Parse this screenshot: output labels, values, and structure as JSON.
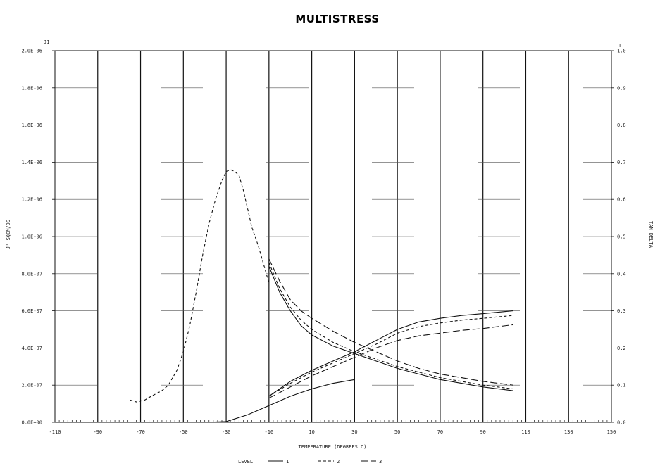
{
  "chart_data": {
    "type": "line",
    "title": "MULTISTRESS",
    "xlabel": "TEMPERATURE  (DEGREES C)",
    "ylabel_left": "J'  SQCM/DS",
    "ylabel_left_top": "J1",
    "ylabel_right": "TAN DELTA",
    "ylabel_right_top": "T",
    "xlim": [
      -110,
      150
    ],
    "xticks": [
      "-110",
      "-90",
      "-70",
      "-50",
      "-30",
      "-10",
      "10",
      "30",
      "50",
      "70",
      "90",
      "110",
      "130",
      "150"
    ],
    "ylim_left": [
      0,
      2e-06
    ],
    "yticks_left": [
      "0.0E+00",
      "2.0E-07",
      "4.0E-07",
      "6.0E-07",
      "8.0E-07",
      "1.0E-06",
      "1.2E-06",
      "1.4E-06",
      "1.6E-06",
      "1.8E-06",
      "2.0E-06"
    ],
    "ylim_right": [
      0,
      1.0
    ],
    "yticks_right": [
      "0.0",
      "0.1",
      "0.2",
      "0.3",
      "0.4",
      "0.5",
      "0.6",
      "0.7",
      "0.8",
      "0.9",
      "1.0"
    ],
    "legend": {
      "title": "LEVEL",
      "placement": "bottom",
      "entries": [
        {
          "label": "1",
          "dash": "solid"
        },
        {
          "label": "2",
          "dash": "short-dash"
        },
        {
          "label": "3",
          "dash": "long-dash"
        }
      ]
    },
    "series": [
      {
        "name": "1",
        "axis": "left",
        "dash": "solid",
        "x": [
          -10,
          0,
          10,
          20,
          30,
          40,
          50,
          60,
          70,
          80,
          90,
          104
        ],
        "y": [
          1.4e-07,
          2.2e-07,
          2.8e-07,
          3.3e-07,
          3.8e-07,
          4.4e-07,
          5e-07,
          5.4e-07,
          5.6e-07,
          5.75e-07,
          5.85e-07,
          6e-07
        ]
      },
      {
        "name": "2",
        "axis": "left",
        "dash": "short-dash",
        "x": [
          -75,
          -72,
          -68,
          -65,
          -60,
          -57,
          -53,
          -50,
          -47,
          -44,
          -41,
          -38,
          -35,
          -32,
          -30,
          -28,
          -26,
          -24,
          -22,
          -20,
          -18,
          -15,
          -12,
          -10
        ],
        "y": [
          1.2e-07,
          1.1e-07,
          1.2e-07,
          1.4e-07,
          1.7e-07,
          2e-07,
          2.8e-07,
          3.8e-07,
          5.2e-07,
          7e-07,
          9e-07,
          1.07e-06,
          1.2e-06,
          1.3e-06,
          1.35e-06,
          1.36e-06,
          1.35e-06,
          1.33e-06,
          1.25e-06,
          1.15e-06,
          1.05e-06,
          9.5e-07,
          8.3e-07,
          7.5e-07
        ]
      },
      {
        "name": "2",
        "axis": "left",
        "dash": "short-dash",
        "x": [
          -10,
          0,
          10,
          20,
          30,
          40,
          50,
          60,
          70,
          80,
          90,
          104
        ],
        "y": [
          1.4e-07,
          2.1e-07,
          2.7e-07,
          3.2e-07,
          3.7e-07,
          4.2e-07,
          4.8e-07,
          5.15e-07,
          5.35e-07,
          5.5e-07,
          5.6e-07,
          5.75e-07
        ]
      },
      {
        "name": "3",
        "axis": "left",
        "dash": "long-dash",
        "x": [
          -10,
          0,
          10,
          20,
          30,
          40,
          50,
          60,
          70,
          80,
          90,
          104
        ],
        "y": [
          1.3e-07,
          1.9e-07,
          2.5e-07,
          3e-07,
          3.5e-07,
          4e-07,
          4.4e-07,
          4.65e-07,
          4.8e-07,
          4.95e-07,
          5.05e-07,
          5.25e-07
        ]
      },
      {
        "name": "1",
        "axis": "right",
        "dash": "solid",
        "x": [
          -10,
          -5,
          0,
          5,
          10,
          20,
          30,
          40,
          50,
          60,
          70,
          80,
          90,
          104
        ],
        "y": [
          0.42,
          0.35,
          0.3,
          0.26,
          0.235,
          0.205,
          0.185,
          0.165,
          0.145,
          0.13,
          0.115,
          0.105,
          0.095,
          0.085
        ]
      },
      {
        "name": "2",
        "axis": "right",
        "dash": "short-dash",
        "x": [
          -10,
          -5,
          0,
          5,
          10,
          20,
          30,
          40,
          50,
          60,
          70,
          80,
          90,
          104
        ],
        "y": [
          0.43,
          0.36,
          0.31,
          0.275,
          0.25,
          0.215,
          0.19,
          0.17,
          0.15,
          0.135,
          0.12,
          0.11,
          0.1,
          0.09
        ]
      },
      {
        "name": "3",
        "axis": "right",
        "dash": "long-dash",
        "x": [
          -10,
          -5,
          0,
          5,
          10,
          20,
          30,
          40,
          50,
          60,
          70,
          80,
          90,
          104
        ],
        "y": [
          0.44,
          0.38,
          0.33,
          0.3,
          0.28,
          0.245,
          0.215,
          0.19,
          0.165,
          0.145,
          0.13,
          0.12,
          0.11,
          0.1
        ]
      },
      {
        "name": "",
        "axis": "right",
        "dash": "solid",
        "x": [
          -80,
          -60,
          -40,
          -30,
          -20,
          -10,
          0,
          10,
          20,
          30
        ],
        "y": [
          0,
          0,
          0,
          0.002,
          0.02,
          0.045,
          0.07,
          0.09,
          0.105,
          0.115
        ]
      }
    ]
  }
}
